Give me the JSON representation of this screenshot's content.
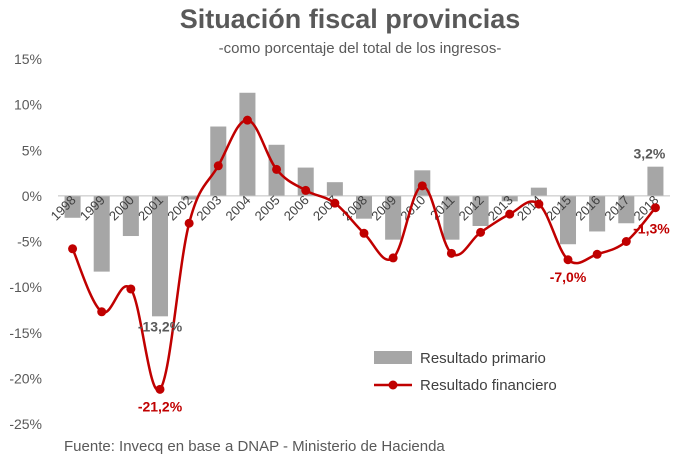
{
  "chart_data": {
    "type": "bar+line",
    "title": "Situación fiscal provincias",
    "subtitle": "-como porcentaje del total de los ingresos-",
    "source": "Fuente: Invecq en base a DNAP - Ministerio de Hacienda",
    "categories": [
      "1998",
      "1999",
      "2000",
      "2001",
      "2002",
      "2003",
      "2004",
      "2005",
      "2006",
      "2007",
      "2008",
      "2009",
      "2010",
      "2011",
      "2012",
      "2013",
      "2014",
      "2015",
      "2016",
      "2017",
      "2018"
    ],
    "ylim": [
      -25,
      15
    ],
    "yticks": [
      15,
      10,
      5,
      0,
      -5,
      -10,
      -15,
      -20,
      -25
    ],
    "ytick_labels": [
      "15%",
      "10%",
      "5%",
      "0%",
      "-5%",
      "-10%",
      "-15%",
      "-20%",
      "-25%"
    ],
    "series": [
      {
        "name": "Resultado primario",
        "type": "bar",
        "color": "#a6a6a6",
        "values": [
          -2.4,
          -8.3,
          -4.4,
          -13.2,
          -0.4,
          7.6,
          11.3,
          5.6,
          3.1,
          1.5,
          -2.5,
          -4.8,
          2.8,
          -4.8,
          -3.3,
          -0.6,
          0.9,
          -5.3,
          -3.9,
          -3.0,
          3.2
        ]
      },
      {
        "name": "Resultado financiero",
        "type": "line",
        "color": "#c00000",
        "values": [
          -5.8,
          -12.7,
          -10.2,
          -21.2,
          -3.0,
          3.3,
          8.3,
          2.9,
          0.6,
          -0.8,
          -4.1,
          -6.8,
          1.1,
          -6.3,
          -4.0,
          -2.0,
          -0.9,
          -7.0,
          -6.4,
          -5.0,
          -1.3
        ]
      }
    ],
    "annotations": [
      {
        "text": "-13,2%",
        "series": 0,
        "index": 3,
        "color": "#595959"
      },
      {
        "text": "-21,2%",
        "series": 1,
        "index": 3,
        "color": "#c00000"
      },
      {
        "text": "-7,0%",
        "series": 1,
        "index": 17,
        "color": "#c00000"
      },
      {
        "text": "3,2%",
        "series": 0,
        "index": 20,
        "color": "#595959"
      },
      {
        "text": "-1,3%",
        "series": 1,
        "index": 20,
        "color": "#c00000"
      }
    ],
    "legend": {
      "placement": "bottom-right"
    },
    "grid": false
  }
}
